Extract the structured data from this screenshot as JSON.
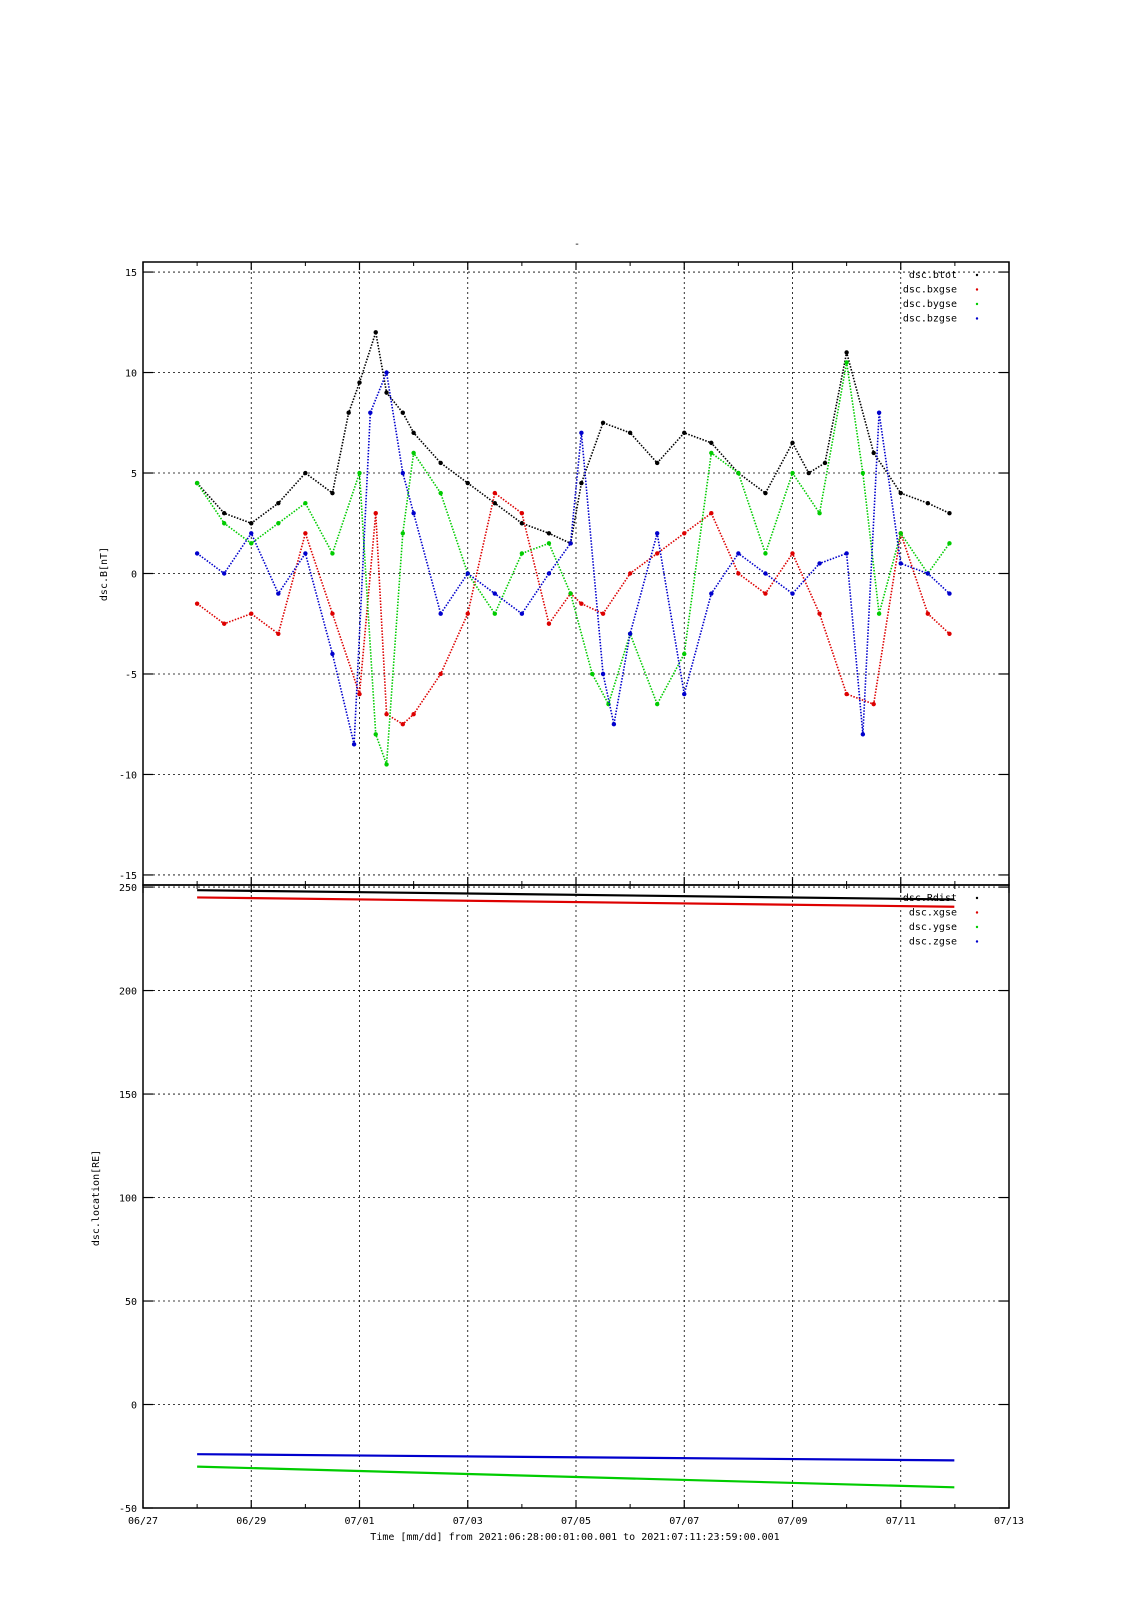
{
  "chart_data": [
    {
      "type": "scatter",
      "title": "-",
      "ylabel": "dsc.B[nT]",
      "xlim": [
        0,
        16
      ],
      "ylim": [
        -15.5,
        15.5
      ],
      "x_ticks": [
        0,
        2,
        4,
        6,
        8,
        10,
        12,
        14,
        16
      ],
      "y_ticks": [
        -15,
        -10,
        -5,
        0,
        5,
        10,
        15
      ],
      "grid": true,
      "legend_position": "top-right",
      "series": [
        {
          "name": "dsc.btot",
          "color": "#000000",
          "x": [
            1.0,
            1.5,
            2.0,
            2.5,
            3.0,
            3.5,
            3.8,
            4.0,
            4.3,
            4.5,
            4.8,
            5.0,
            5.5,
            6.0,
            6.5,
            7.0,
            7.5,
            7.9,
            8.1,
            8.5,
            9.0,
            9.5,
            10.0,
            10.5,
            11.0,
            11.5,
            12.0,
            12.3,
            12.6,
            13.0,
            13.5,
            14.0,
            14.5,
            14.9
          ],
          "y": [
            4.5,
            3.0,
            2.5,
            3.5,
            5.0,
            4.0,
            8.0,
            9.5,
            12.0,
            9.0,
            8.0,
            7.0,
            5.5,
            4.5,
            3.5,
            2.5,
            2.0,
            1.5,
            4.5,
            7.5,
            7.0,
            5.5,
            7.0,
            6.5,
            5.0,
            4.0,
            6.5,
            5.0,
            5.5,
            11.0,
            6.0,
            4.0,
            3.5,
            3.0
          ]
        },
        {
          "name": "dsc.bxgse",
          "color": "#dd0000",
          "x": [
            1.0,
            1.5,
            2.0,
            2.5,
            3.0,
            3.5,
            4.0,
            4.3,
            4.5,
            4.8,
            5.0,
            5.5,
            6.0,
            6.5,
            7.0,
            7.5,
            7.9,
            8.1,
            8.5,
            9.0,
            9.5,
            10.0,
            10.5,
            11.0,
            11.5,
            12.0,
            12.5,
            13.0,
            13.5,
            14.0,
            14.5,
            14.9
          ],
          "y": [
            -1.5,
            -2.5,
            -2.0,
            -3.0,
            2.0,
            -2.0,
            -6.0,
            3.0,
            -7.0,
            -7.5,
            -7.0,
            -5.0,
            -2.0,
            4.0,
            3.0,
            -2.5,
            -1.0,
            -1.5,
            -2.0,
            0.0,
            1.0,
            2.0,
            3.0,
            0.0,
            -1.0,
            1.0,
            -2.0,
            -6.0,
            -6.5,
            2.0,
            -2.0,
            -3.0
          ]
        },
        {
          "name": "dsc.bygse",
          "color": "#00cc00",
          "x": [
            1.0,
            1.5,
            2.0,
            2.5,
            3.0,
            3.5,
            4.0,
            4.3,
            4.5,
            4.8,
            5.0,
            5.5,
            6.0,
            6.5,
            7.0,
            7.5,
            7.9,
            8.3,
            8.6,
            9.0,
            9.5,
            10.0,
            10.5,
            11.0,
            11.5,
            12.0,
            12.5,
            13.0,
            13.3,
            13.6,
            14.0,
            14.5,
            14.9
          ],
          "y": [
            4.5,
            2.5,
            1.5,
            2.5,
            3.5,
            1.0,
            5.0,
            -8.0,
            -9.5,
            2.0,
            6.0,
            4.0,
            0.0,
            -2.0,
            1.0,
            1.5,
            -1.0,
            -5.0,
            -6.5,
            -3.0,
            -6.5,
            -4.0,
            6.0,
            5.0,
            1.0,
            5.0,
            3.0,
            10.5,
            5.0,
            -2.0,
            2.0,
            0.0,
            1.5
          ]
        },
        {
          "name": "dsc.bzgse",
          "color": "#0000cc",
          "x": [
            1.0,
            1.5,
            2.0,
            2.5,
            3.0,
            3.5,
            3.9,
            4.2,
            4.5,
            4.8,
            5.0,
            5.5,
            6.0,
            6.5,
            7.0,
            7.5,
            7.9,
            8.1,
            8.5,
            8.7,
            9.0,
            9.5,
            10.0,
            10.5,
            11.0,
            11.5,
            12.0,
            12.5,
            13.0,
            13.3,
            13.6,
            14.0,
            14.5,
            14.9
          ],
          "y": [
            1.0,
            0.0,
            2.0,
            -1.0,
            1.0,
            -4.0,
            -8.5,
            8.0,
            10.0,
            5.0,
            3.0,
            -2.0,
            0.0,
            -1.0,
            -2.0,
            0.0,
            1.5,
            7.0,
            -5.0,
            -7.5,
            -3.0,
            2.0,
            -6.0,
            -1.0,
            1.0,
            0.0,
            -1.0,
            0.5,
            1.0,
            -8.0,
            8.0,
            0.5,
            0.0,
            -1.0
          ]
        }
      ]
    },
    {
      "type": "line",
      "ylabel": "dsc.location[RE]",
      "xlim": [
        0,
        16
      ],
      "ylim": [
        -50,
        251
      ],
      "x_ticks": [
        0,
        2,
        4,
        6,
        8,
        10,
        12,
        14,
        16
      ],
      "x_tick_labels": [
        "06/27",
        "06/29",
        "07/01",
        "07/03",
        "07/05",
        "07/07",
        "07/09",
        "07/11",
        "07/13"
      ],
      "y_ticks": [
        -50,
        0,
        50,
        100,
        150,
        200,
        250
      ],
      "grid": true,
      "legend_position": "top-right",
      "xlabel": "Time [mm/dd]  from 2021:06:28:00:01:00.001  to  2021:07:11:23:59:00.001",
      "series": [
        {
          "name": "dsc.Rdist",
          "color": "#000000",
          "x": [
            1.0,
            14.99
          ],
          "y": [
            248.5,
            244.0
          ]
        },
        {
          "name": "dsc.xgse",
          "color": "#dd0000",
          "x": [
            1.0,
            14.99
          ],
          "y": [
            245.0,
            240.5
          ]
        },
        {
          "name": "dsc.ygse",
          "color": "#00cc00",
          "x": [
            1.0,
            14.99
          ],
          "y": [
            -30.0,
            -40.0
          ]
        },
        {
          "name": "dsc.zgse",
          "color": "#0000cc",
          "x": [
            1.0,
            14.99
          ],
          "y": [
            -24.0,
            -27.0
          ]
        }
      ]
    }
  ]
}
